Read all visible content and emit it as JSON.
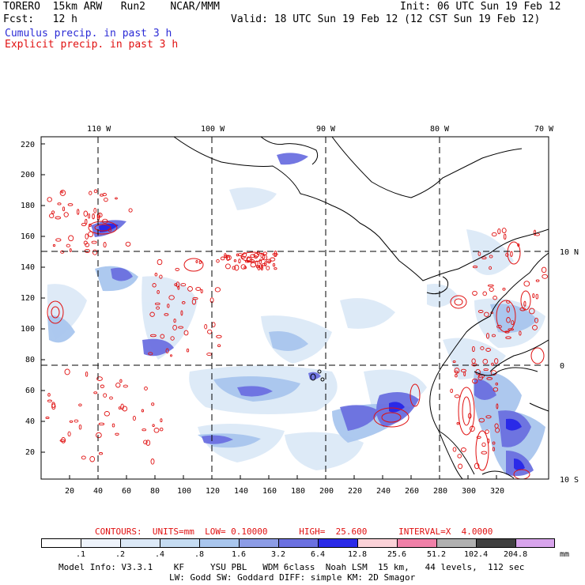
{
  "header": {
    "line1_left": "TORERO  15km ARW   Run2    NCAR/MMM",
    "line1_right": "Init: 06 UTC Sun 19 Feb 12",
    "line2_left": "Fcst:   12 h",
    "line2_right": "Valid: 18 UTC Sun 19 Feb 12 (12 CST Sun 19 Feb 12)",
    "legend_cumulus": "Cumulus precip. in past 3 h",
    "legend_explicit": "Explicit precip. in past 3 h"
  },
  "map": {
    "lon_labels": [
      "110 W",
      "100 W",
      "90 W",
      "80 W",
      "70 W"
    ],
    "lat_labels": [
      "10 N",
      "0",
      "10 S"
    ],
    "y_ticks": [
      "220",
      "200",
      "180",
      "160",
      "140",
      "120",
      "100",
      "80",
      "60",
      "40",
      "20"
    ],
    "x_ticks": [
      "20",
      "40",
      "60",
      "80",
      "100",
      "120",
      "140",
      "160",
      "180",
      "200",
      "220",
      "240",
      "260",
      "280",
      "300",
      "320"
    ]
  },
  "contours": {
    "label": "CONTOURS:  UNITS=mm  LOW= 0.10000      HIGH=  25.600      INTERVAL=X  4.0000"
  },
  "colorbar": {
    "levels": [
      ".1",
      ".2",
      ".4",
      ".8",
      "1.6",
      "3.2",
      "6.4",
      "12.8",
      "25.6",
      "51.2",
      "102.4",
      "204.8"
    ],
    "unit": "mm",
    "colors": [
      "#ffffff",
      "#eef3fb",
      "#dce9f7",
      "#c5dcf2",
      "#a9c6ee",
      "#8c9ce6",
      "#6b70e0",
      "#2a2ae8",
      "#fbd2d8",
      "#f080a8",
      "#b0b0b0",
      "#404040",
      "#d8a4ec"
    ]
  },
  "footer": {
    "line1": "Model Info: V3.3.1    KF     YSU PBL   WDM 6class  Noah LSM  15 km,   44 levels,  112 sec",
    "line2": "LW: Godd SW: Goddard DIFF: simple KM: 2D Smagor"
  }
}
